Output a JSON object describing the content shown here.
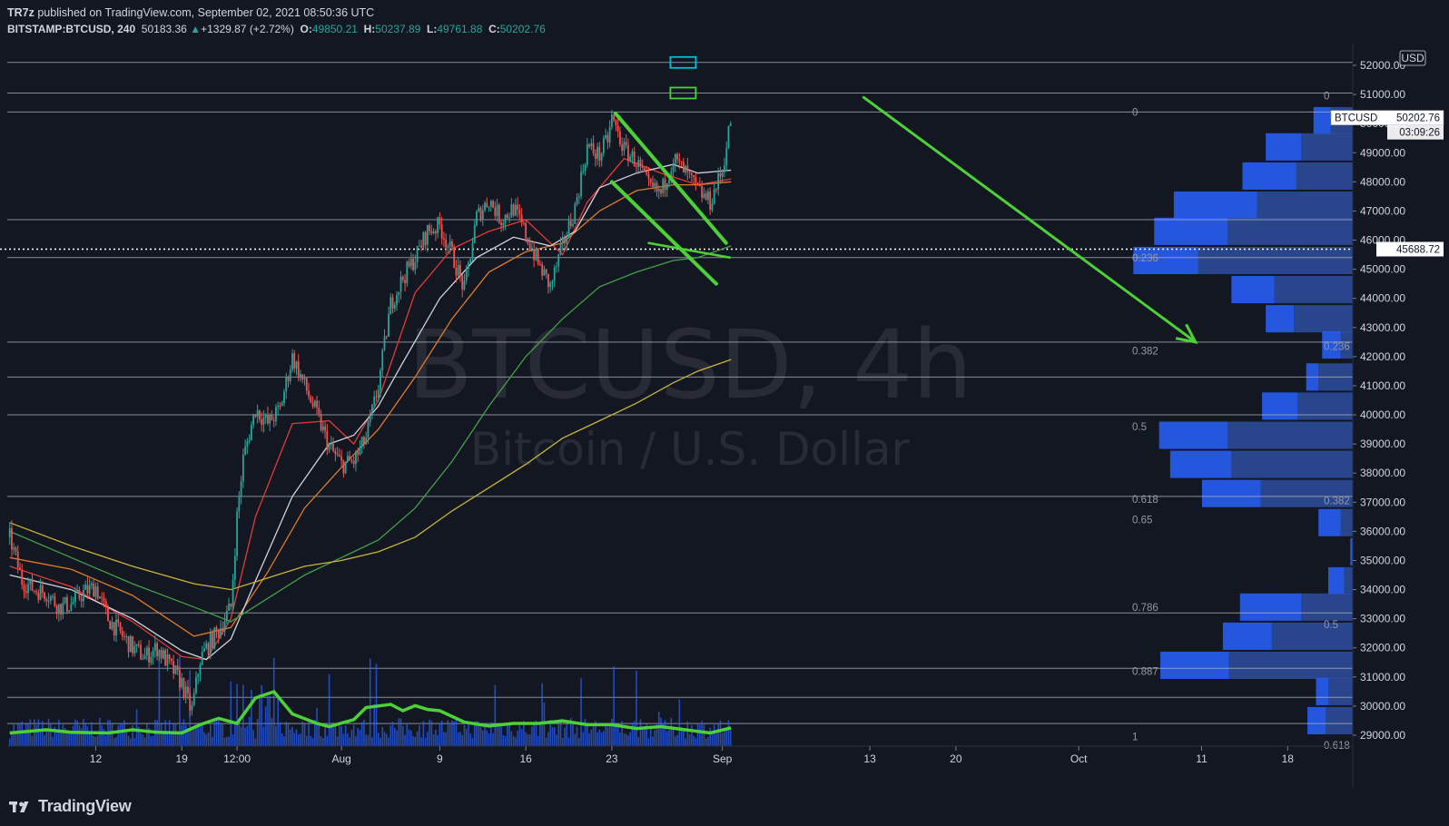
{
  "header": {
    "author": "TR7z",
    "published_text": " published on TradingView.com, September 02, 2021 08:50:36 UTC",
    "symbol": "BITSTAMP:BTCUSD, 240",
    "last": "50183.36",
    "change": "+1329.87 (+2.72%)",
    "o_label": "O:",
    "o": "49850.21",
    "h_label": "H:",
    "h": "50237.89",
    "l_label": "L:",
    "l": "49761.88",
    "c_label": "C:",
    "c": "50202.76"
  },
  "watermark": {
    "line1": "BTCUSD, 4h",
    "line2": "Bitcoin / U.S. Dollar"
  },
  "footer": {
    "logo_text": "TradingView"
  },
  "colors": {
    "background": "#131722",
    "candle_up": "#26a69a",
    "candle_down": "#ef5350",
    "annotation": "#4cd137",
    "volume": "#2962ff",
    "ma_white": "#d1d4dc",
    "ma_red": "#e53935",
    "ma_orange": "#e07b2a",
    "ma_green": "#43a047",
    "ma_yellow": "#c9b43a"
  },
  "chart_data": {
    "type": "candlestick",
    "price_axis": {
      "unit": "USD",
      "ylim": [
        28700,
        52400
      ],
      "ticks": [
        29000,
        30000,
        31000,
        32000,
        33000,
        34000,
        35000,
        36000,
        37000,
        38000,
        39000,
        40000,
        41000,
        42000,
        43000,
        44000,
        45000,
        46000,
        47000,
        48000,
        49000,
        50000,
        51000,
        52000
      ],
      "tick_labels": [
        "29000.00",
        "30000.00",
        "31000.00",
        "32000.00",
        "33000.00",
        "34000.00",
        "35000.00",
        "36000.00",
        "37000.00",
        "38000.00",
        "39000.00",
        "40000.00",
        "41000.00",
        "42000.00",
        "43000.00",
        "44000.00",
        "45000.00",
        "46000.00",
        "47000.00",
        "48000.00",
        "49000.00",
        "50000.00",
        "51000.00",
        "52000.00"
      ],
      "last_price_label": "BTCUSD",
      "last_price": "50202.76",
      "countdown": "03:09:26",
      "cursor_price": "45688.72"
    },
    "time_axis": {
      "ticks": [
        {
          "label": "12",
          "day": 12
        },
        {
          "label": "19",
          "day": 19
        },
        {
          "label": "12:00",
          "day": 23.5
        },
        {
          "label": "Aug",
          "day": 32
        },
        {
          "label": "9",
          "day": 40
        },
        {
          "label": "16",
          "day": 47
        },
        {
          "label": "23",
          "day": 54
        },
        {
          "label": "Sep",
          "day": 63
        },
        {
          "label": "13",
          "day": 75
        },
        {
          "label": "20",
          "day": 82
        },
        {
          "label": "Oct",
          "day": 92
        },
        {
          "label": "11",
          "day": 102
        },
        {
          "label": "18",
          "day": 109
        }
      ],
      "day_range": [
        4.8,
        114.3
      ]
    },
    "price_path": [
      [
        5,
        35800
      ],
      [
        6,
        34300
      ],
      [
        7,
        34000
      ],
      [
        8,
        33900
      ],
      [
        9,
        33400
      ],
      [
        10,
        33500
      ],
      [
        11,
        33900
      ],
      [
        12,
        34100
      ],
      [
        13,
        33000
      ],
      [
        14,
        32500
      ],
      [
        15,
        32000
      ],
      [
        16,
        31700
      ],
      [
        17,
        32000
      ],
      [
        18,
        31400
      ],
      [
        19,
        30800
      ],
      [
        19.8,
        29800
      ],
      [
        20.5,
        31600
      ],
      [
        21,
        32000
      ],
      [
        22,
        32600
      ],
      [
        23,
        33400
      ],
      [
        23.5,
        36500
      ],
      [
        24,
        38500
      ],
      [
        25,
        40200
      ],
      [
        26,
        39700
      ],
      [
        27,
        40200
      ],
      [
        28,
        42000
      ],
      [
        29,
        41000
      ],
      [
        30,
        40000
      ],
      [
        31,
        38900
      ],
      [
        32,
        38300
      ],
      [
        33,
        38400
      ],
      [
        34,
        39200
      ],
      [
        35,
        41000
      ],
      [
        36,
        43800
      ],
      [
        37,
        44700
      ],
      [
        38,
        45400
      ],
      [
        39,
        46300
      ],
      [
        40,
        46500
      ],
      [
        41,
        45500
      ],
      [
        42,
        44300
      ],
      [
        43,
        46800
      ],
      [
        44,
        47400
      ],
      [
        45,
        46700
      ],
      [
        46,
        47100
      ],
      [
        47,
        46200
      ],
      [
        48,
        45200
      ],
      [
        49,
        44400
      ],
      [
        50,
        45800
      ],
      [
        51,
        47100
      ],
      [
        52,
        49200
      ],
      [
        53,
        48900
      ],
      [
        53.7,
        49500
      ],
      [
        54,
        50200
      ],
      [
        55,
        49100
      ],
      [
        56,
        48700
      ],
      [
        57,
        47800
      ],
      [
        58,
        47600
      ],
      [
        59,
        48800
      ],
      [
        60,
        48300
      ],
      [
        61,
        47700
      ],
      [
        62,
        47300
      ],
      [
        63,
        48400
      ],
      [
        63.7,
        50200
      ]
    ],
    "volume_profile_rows": [
      {
        "price": 50100,
        "up": 1400,
        "down": 1800
      },
      {
        "price": 49200,
        "up": 2900,
        "down": 4200
      },
      {
        "price": 48200,
        "up": 4400,
        "down": 4600
      },
      {
        "price": 47200,
        "up": 6800,
        "down": 7800
      },
      {
        "price": 46300,
        "up": 6000,
        "down": 10200
      },
      {
        "price": 45300,
        "up": 5300,
        "down": 12600
      },
      {
        "price": 44300,
        "up": 3500,
        "down": 6400
      },
      {
        "price": 43300,
        "up": 2300,
        "down": 4800
      },
      {
        "price": 42400,
        "up": 1500,
        "down": 1000
      },
      {
        "price": 41300,
        "up": 1000,
        "down": 2800
      },
      {
        "price": 40300,
        "up": 2900,
        "down": 4500
      },
      {
        "price": 39300,
        "up": 5600,
        "down": 10200
      },
      {
        "price": 38300,
        "up": 5000,
        "down": 9900
      },
      {
        "price": 37300,
        "up": 4800,
        "down": 7500
      },
      {
        "price": 36300,
        "up": 1800,
        "down": 1000
      },
      {
        "price": 35300,
        "up": 200,
        "down": 0
      },
      {
        "price": 34300,
        "up": 1300,
        "down": 700
      },
      {
        "price": 33400,
        "up": 5000,
        "down": 4200
      },
      {
        "price": 32400,
        "up": 4000,
        "down": 6600
      },
      {
        "price": 31400,
        "up": 5600,
        "down": 10100
      },
      {
        "price": 30500,
        "up": 1000,
        "down": 2000
      },
      {
        "price": 29500,
        "up": 1500,
        "down": 2200
      }
    ],
    "fib_main": {
      "levels": [
        {
          "label": "0",
          "price": 50400
        },
        {
          "label": "0.236",
          "price": 45400
        },
        {
          "label": "0.382",
          "price": 42200
        },
        {
          "label": "0.5",
          "price": 39600
        },
        {
          "label": "0.618",
          "price": 37100
        },
        {
          "label": "0.65",
          "price": 36400
        },
        {
          "label": "0.786",
          "price": 33400
        },
        {
          "label": "0.887",
          "price": 31200
        },
        {
          "label": "1",
          "price": 28950
        }
      ]
    },
    "fib_secondary": {
      "levels": [
        {
          "label": "0",
          "price": 50950
        },
        {
          "label": "0.236",
          "price": 42350
        },
        {
          "label": "0.382",
          "price": 37050
        },
        {
          "label": "0.5",
          "price": 32800
        },
        {
          "label": "0.618",
          "price": 28650
        }
      ]
    },
    "horizontal_levels": [
      52100,
      51050,
      50400,
      46700,
      45400,
      42500,
      41300,
      40000,
      37200,
      33200,
      31300,
      30300,
      29400
    ],
    "moving_averages": [
      {
        "color": "#e53935",
        "points": [
          [
            5,
            34800
          ],
          [
            10,
            34100
          ],
          [
            15,
            32900
          ],
          [
            19,
            31700
          ],
          [
            21,
            31600
          ],
          [
            23,
            33000
          ],
          [
            25,
            36500
          ],
          [
            28,
            39700
          ],
          [
            31,
            39800
          ],
          [
            33,
            39000
          ],
          [
            35,
            40500
          ],
          [
            38,
            44200
          ],
          [
            41,
            45700
          ],
          [
            44,
            46300
          ],
          [
            47,
            46700
          ],
          [
            50,
            45500
          ],
          [
            52,
            47300
          ],
          [
            55,
            48800
          ],
          [
            58,
            48300
          ],
          [
            61,
            47900
          ],
          [
            63.7,
            48100
          ]
        ]
      },
      {
        "color": "#e07b2a",
        "points": [
          [
            5,
            35100
          ],
          [
            10,
            34700
          ],
          [
            15,
            33800
          ],
          [
            20,
            32400
          ],
          [
            23,
            32700
          ],
          [
            26,
            34600
          ],
          [
            29,
            36800
          ],
          [
            32,
            38200
          ],
          [
            35,
            39500
          ],
          [
            38,
            41300
          ],
          [
            41,
            43300
          ],
          [
            44,
            44900
          ],
          [
            47,
            45600
          ],
          [
            50,
            45900
          ],
          [
            53,
            47000
          ],
          [
            56,
            47700
          ],
          [
            59,
            47900
          ],
          [
            61,
            47900
          ],
          [
            63.7,
            48000
          ]
        ]
      },
      {
        "color": "#d1d4dc",
        "points": [
          [
            5,
            34500
          ],
          [
            10,
            34000
          ],
          [
            15,
            33000
          ],
          [
            19,
            31900
          ],
          [
            21,
            31600
          ],
          [
            23,
            32300
          ],
          [
            25,
            34300
          ],
          [
            28,
            37200
          ],
          [
            31,
            39000
          ],
          [
            33,
            39300
          ],
          [
            35,
            40300
          ],
          [
            37,
            41800
          ],
          [
            40,
            44000
          ],
          [
            43,
            45400
          ],
          [
            46,
            46100
          ],
          [
            49,
            45800
          ],
          [
            51,
            46300
          ],
          [
            53,
            47800
          ],
          [
            56,
            48300
          ],
          [
            59,
            48600
          ],
          [
            61,
            48300
          ],
          [
            63.7,
            48400
          ]
        ]
      },
      {
        "color": "#43a047",
        "points": [
          [
            5,
            36000
          ],
          [
            10,
            35100
          ],
          [
            15,
            34200
          ],
          [
            20,
            33400
          ],
          [
            23,
            32900
          ],
          [
            26,
            33700
          ],
          [
            29,
            34500
          ],
          [
            32,
            35100
          ],
          [
            35,
            35700
          ],
          [
            38,
            36800
          ],
          [
            41,
            38400
          ],
          [
            44,
            40300
          ],
          [
            47,
            42000
          ],
          [
            50,
            43300
          ],
          [
            53,
            44400
          ],
          [
            56,
            44900
          ],
          [
            59,
            45300
          ],
          [
            61,
            45400
          ],
          [
            63.7,
            45800
          ]
        ]
      },
      {
        "color": "#c9b43a",
        "points": [
          [
            5,
            36300
          ],
          [
            10,
            35500
          ],
          [
            15,
            34800
          ],
          [
            20,
            34200
          ],
          [
            23,
            34000
          ],
          [
            26,
            34400
          ],
          [
            29,
            34800
          ],
          [
            32,
            35000
          ],
          [
            35,
            35300
          ],
          [
            38,
            35800
          ],
          [
            41,
            36700
          ],
          [
            44,
            37500
          ],
          [
            47,
            38300
          ],
          [
            50,
            39200
          ],
          [
            53,
            39800
          ],
          [
            56,
            40400
          ],
          [
            59,
            41100
          ],
          [
            61,
            41500
          ],
          [
            63.7,
            41900
          ]
        ]
      }
    ],
    "volume_ma_rel": [
      [
        5,
        0.15
      ],
      [
        8,
        0.2
      ],
      [
        10,
        0.16
      ],
      [
        13,
        0.15
      ],
      [
        15,
        0.2
      ],
      [
        17,
        0.16
      ],
      [
        19,
        0.15
      ],
      [
        20.5,
        0.28
      ],
      [
        22,
        0.38
      ],
      [
        23.5,
        0.3
      ],
      [
        25,
        0.7
      ],
      [
        26.5,
        0.8
      ],
      [
        28,
        0.45
      ],
      [
        30,
        0.3
      ],
      [
        31,
        0.25
      ],
      [
        33,
        0.36
      ],
      [
        34,
        0.55
      ],
      [
        36,
        0.6
      ],
      [
        37,
        0.5
      ],
      [
        38,
        0.58
      ],
      [
        39,
        0.52
      ],
      [
        40,
        0.5
      ],
      [
        42,
        0.32
      ],
      [
        44,
        0.26
      ],
      [
        46,
        0.3
      ],
      [
        48,
        0.3
      ],
      [
        50,
        0.34
      ],
      [
        52,
        0.28
      ],
      [
        54,
        0.28
      ],
      [
        56,
        0.22
      ],
      [
        58,
        0.25
      ],
      [
        60,
        0.2
      ],
      [
        62,
        0.15
      ],
      [
        63.7,
        0.23
      ]
    ],
    "annotations": {
      "channel_upper": [
        [
          54.3,
          50350
        ],
        [
          63.3,
          45900
        ]
      ],
      "channel_lower": [
        [
          54.0,
          48000
        ],
        [
          62.5,
          44500
        ]
      ],
      "ascending_line": [
        [
          57,
          45900
        ],
        [
          63.6,
          45400
        ]
      ],
      "projection_arrow": [
        [
          74.5,
          50900
        ],
        [
          101.5,
          42500
        ]
      ],
      "target_box_cyan": [
        59.8,
        52100
      ],
      "target_box_green": [
        59.8,
        51050
      ]
    }
  }
}
